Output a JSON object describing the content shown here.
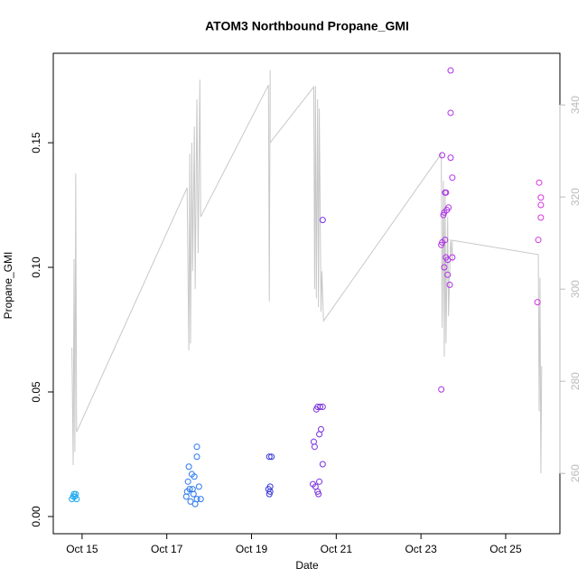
{
  "chart_data": {
    "type": "scatter",
    "title": "ATOM3 Northbound Propane_GMI",
    "xlabel": "Date",
    "ylabel": "Propane_GMI",
    "xlim": [
      14.32,
      26.28
    ],
    "xticks": [
      {
        "value": 15,
        "label": "Oct 15"
      },
      {
        "value": 17,
        "label": "Oct 17"
      },
      {
        "value": 19,
        "label": "Oct 19"
      },
      {
        "value": 21,
        "label": "Oct 21"
      },
      {
        "value": 23,
        "label": "Oct 23"
      },
      {
        "value": 25,
        "label": "Oct 25"
      }
    ],
    "ylim": [
      -0.0069,
      0.1859
    ],
    "yticks": [
      {
        "value": 0,
        "label": "0.00"
      },
      0.05,
      {
        "value": 0.1,
        "label": "0.10"
      },
      0.15
    ],
    "y2lim": [
      246.9,
      351.2
    ],
    "y2ticks": [
      260,
      280,
      300,
      320,
      340
    ],
    "y2color": "#bbbbbb",
    "x": [
      14.76,
      14.79,
      14.81,
      14.83,
      14.85,
      14.87,
      17.71,
      17.71,
      17.52,
      17.59,
      17.65,
      17.5,
      17.76,
      17.54,
      17.48,
      17.63,
      17.46,
      17.71,
      17.8,
      17.56,
      17.67,
      17.61,
      19.42,
      19.47,
      19.44,
      19.4,
      19.44,
      19.42,
      20.56,
      20.62,
      20.68,
      20.53,
      20.64,
      20.6,
      20.47,
      20.49,
      20.68,
      20.45,
      20.6,
      20.51,
      20.56,
      20.58,
      20.68,
      23.7,
      23.7,
      23.5,
      23.7,
      23.74,
      23.57,
      23.59,
      23.65,
      23.61,
      23.55,
      23.53,
      23.57,
      23.5,
      23.48,
      23.59,
      23.63,
      23.74,
      23.55,
      23.63,
      23.68,
      23.48,
      25.79,
      25.83,
      25.83,
      25.83,
      25.77,
      25.75
    ],
    "values": [
      0.007,
      0.008,
      0.009,
      0.008,
      0.009,
      0.007,
      0.028,
      0.024,
      0.02,
      0.017,
      0.016,
      0.014,
      0.012,
      0.011,
      0.01,
      0.009,
      0.008,
      0.007,
      0.007,
      0.006,
      0.005,
      0.011,
      0.024,
      0.024,
      0.012,
      0.011,
      0.01,
      0.009,
      0.044,
      0.044,
      0.044,
      0.043,
      0.035,
      0.033,
      0.03,
      0.028,
      0.021,
      0.013,
      0.014,
      0.012,
      0.01,
      0.009,
      0.119,
      0.179,
      0.162,
      0.145,
      0.144,
      0.136,
      0.13,
      0.13,
      0.124,
      0.123,
      0.122,
      0.121,
      0.111,
      0.11,
      0.109,
      0.104,
      0.103,
      0.104,
      0.1,
      0.097,
      0.093,
      0.051,
      0.134,
      0.128,
      0.125,
      0.12,
      0.111,
      0.086
    ],
    "colors": [
      "#1ea8f0",
      "#1ea8f0",
      "#1ea8f0",
      "#1ea8f0",
      "#1ea8f0",
      "#1ea8f0",
      "#2a78f0",
      "#2a78f0",
      "#2a78f0",
      "#2a78f0",
      "#2a78f0",
      "#2a78f0",
      "#2a78f0",
      "#2a78f0",
      "#2a78f0",
      "#2a78f0",
      "#2a78f0",
      "#2a78f0",
      "#2a78f0",
      "#2a78f0",
      "#2a78f0",
      "#2a78f0",
      "#3838d8",
      "#3838d8",
      "#3838d8",
      "#3838d8",
      "#3838d8",
      "#3838d8",
      "#7a30e0",
      "#7a30e0",
      "#7a30e0",
      "#7a30e0",
      "#7a30e0",
      "#7a30e0",
      "#7a30e0",
      "#7a30e0",
      "#7a30e0",
      "#7a30e0",
      "#7a30e0",
      "#7a30e0",
      "#7a30e0",
      "#7a30e0",
      "#7a30e0",
      "#b030e8",
      "#b030e8",
      "#b030e8",
      "#b030e8",
      "#b030e8",
      "#b030e8",
      "#b030e8",
      "#b030e8",
      "#b030e8",
      "#b030e8",
      "#b030e8",
      "#b030e8",
      "#b030e8",
      "#b030e8",
      "#b030e8",
      "#b030e8",
      "#b030e8",
      "#b030e8",
      "#b030e8",
      "#b030e8",
      "#b030e8",
      "#d535e0",
      "#d535e0",
      "#d535e0",
      "#d535e0",
      "#d535e0",
      "#d535e0"
    ],
    "line": {
      "axis": "y2",
      "color": "#c8c8c8",
      "x": [
        14.76,
        14.79,
        14.81,
        14.83,
        14.85,
        14.87,
        17.48,
        17.5,
        17.52,
        17.54,
        17.56,
        17.59,
        17.61,
        17.65,
        17.67,
        17.71,
        17.74,
        17.78,
        17.8,
        19.4,
        19.42,
        19.44,
        19.44,
        20.47,
        20.49,
        20.51,
        20.53,
        20.56,
        20.58,
        20.6,
        20.64,
        20.66,
        20.7,
        23.48,
        23.5,
        23.53,
        23.55,
        23.57,
        23.59,
        23.63,
        23.65,
        23.7,
        23.74,
        23.74,
        25.77,
        25.79,
        25.81,
        25.83,
        25.85
      ],
      "values": [
        287.3,
        261.8,
        306.5,
        264.7,
        325.1,
        269.0,
        322.0,
        303.9,
        286.7,
        329.4,
        288.2,
        331.8,
        303.9,
        335.3,
        300.0,
        341.2,
        307.8,
        345.5,
        315.7,
        344.3,
        297.3,
        347.5,
        331.8,
        343.9,
        300.0,
        344.1,
        298.0,
        341.2,
        296.1,
        339.2,
        295.1,
        303.9,
        293.1,
        329.4,
        291.6,
        323.5,
        285.3,
        321.6,
        288.2,
        315.7,
        294.1,
        310.8,
        305.9,
        310.6,
        307.5,
        273.5,
        302.5,
        260.0,
        283.3
      ]
    }
  }
}
